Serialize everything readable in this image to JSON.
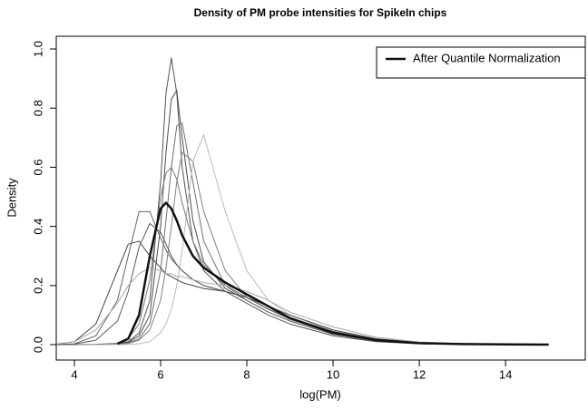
{
  "chart_data": {
    "type": "line",
    "title": "Density of PM probe intensities for SpikeIn chips",
    "xlabel": "log(PM)",
    "ylabel": "Density",
    "x": [
      3.6,
      4,
      4.5,
      5,
      5.25,
      5.5,
      5.75,
      6,
      6.125,
      6.25,
      6.375,
      6.5,
      6.75,
      7,
      7.5,
      8,
      8.5,
      9,
      10,
      11,
      12,
      13,
      14,
      15
    ],
    "series": [
      {
        "color": "#555555",
        "width": 1,
        "values": [
          0,
          0,
          0,
          0.003,
          0.01,
          0.04,
          0.15,
          0.55,
          0.85,
          0.97,
          0.85,
          0.6,
          0.35,
          0.25,
          0.18,
          0.14,
          0.1,
          0.07,
          0.03,
          0.01,
          0.003,
          0.001,
          0,
          0
        ]
      },
      {
        "color": "#4d4d4d",
        "width": 1,
        "values": [
          0,
          0,
          0,
          0.002,
          0.008,
          0.03,
          0.1,
          0.4,
          0.65,
          0.83,
          0.86,
          0.7,
          0.42,
          0.28,
          0.19,
          0.15,
          0.11,
          0.08,
          0.035,
          0.012,
          0.004,
          0.001,
          0,
          0
        ]
      },
      {
        "color": "#707070",
        "width": 1,
        "values": [
          0,
          0,
          0,
          0.002,
          0.006,
          0.02,
          0.07,
          0.25,
          0.42,
          0.6,
          0.74,
          0.75,
          0.55,
          0.35,
          0.2,
          0.15,
          0.11,
          0.08,
          0.035,
          0.012,
          0.004,
          0.001,
          0,
          0
        ]
      },
      {
        "color": "#808080",
        "width": 1,
        "values": [
          0,
          0,
          0,
          0.001,
          0.004,
          0.015,
          0.05,
          0.15,
          0.26,
          0.4,
          0.55,
          0.65,
          0.62,
          0.45,
          0.25,
          0.16,
          0.12,
          0.09,
          0.04,
          0.015,
          0.005,
          0.002,
          0,
          0
        ]
      },
      {
        "color": "#bbbbbb",
        "width": 1,
        "values": [
          0,
          0,
          0,
          0,
          0.001,
          0.003,
          0.01,
          0.04,
          0.07,
          0.12,
          0.2,
          0.32,
          0.62,
          0.71,
          0.45,
          0.25,
          0.15,
          0.1,
          0.045,
          0.018,
          0.006,
          0.002,
          0.001,
          0
        ]
      },
      {
        "color": "#777777",
        "width": 1,
        "values": [
          0,
          0,
          0.001,
          0.005,
          0.02,
          0.07,
          0.22,
          0.5,
          0.58,
          0.6,
          0.56,
          0.48,
          0.35,
          0.27,
          0.2,
          0.16,
          0.12,
          0.085,
          0.038,
          0.013,
          0.004,
          0.001,
          0,
          0
        ]
      },
      {
        "color": "#666666",
        "width": 1,
        "values": [
          0,
          0.003,
          0.03,
          0.15,
          0.3,
          0.45,
          0.45,
          0.36,
          0.32,
          0.29,
          0.27,
          0.25,
          0.22,
          0.2,
          0.18,
          0.16,
          0.12,
          0.09,
          0.045,
          0.017,
          0.006,
          0.002,
          0.001,
          0
        ]
      },
      {
        "color": "#444444",
        "width": 1,
        "values": [
          0.002,
          0.01,
          0.07,
          0.25,
          0.34,
          0.35,
          0.3,
          0.26,
          0.24,
          0.23,
          0.22,
          0.21,
          0.2,
          0.19,
          0.18,
          0.16,
          0.13,
          0.1,
          0.05,
          0.02,
          0.007,
          0.003,
          0.001,
          0
        ]
      },
      {
        "color": "#5a5a5a",
        "width": 1,
        "values": [
          0,
          0.002,
          0.015,
          0.08,
          0.18,
          0.33,
          0.41,
          0.38,
          0.34,
          0.3,
          0.27,
          0.25,
          0.22,
          0.2,
          0.18,
          0.16,
          0.12,
          0.09,
          0.045,
          0.017,
          0.006,
          0.002,
          0.001,
          0
        ]
      },
      {
        "color": "#aaaaaa",
        "width": 1,
        "values": [
          0.003,
          0.01,
          0.05,
          0.14,
          0.2,
          0.24,
          0.26,
          0.25,
          0.24,
          0.24,
          0.23,
          0.23,
          0.22,
          0.21,
          0.2,
          0.18,
          0.15,
          0.11,
          0.06,
          0.025,
          0.009,
          0.003,
          0.001,
          0
        ]
      },
      {
        "name": "After Quantile Normalization",
        "color": "#111111",
        "width": 2.5,
        "values": [
          null,
          null,
          null,
          0.003,
          0.02,
          0.1,
          0.3,
          0.46,
          0.48,
          0.46,
          0.42,
          0.37,
          0.3,
          0.26,
          0.21,
          0.17,
          0.13,
          0.09,
          0.04,
          0.015,
          0.005,
          0.002,
          0.001,
          0
        ]
      }
    ],
    "xlim": [
      3.58,
      15.85
    ],
    "ylim": [
      -0.052,
      1.043
    ],
    "xticks": [
      4,
      6,
      8,
      10,
      12,
      14
    ],
    "yticks": [
      {
        "value": 0,
        "label": "0.0"
      },
      0.2,
      0.4,
      0.6,
      0.8,
      {
        "value": 1,
        "label": "1.0"
      }
    ],
    "legend": "top-right"
  }
}
